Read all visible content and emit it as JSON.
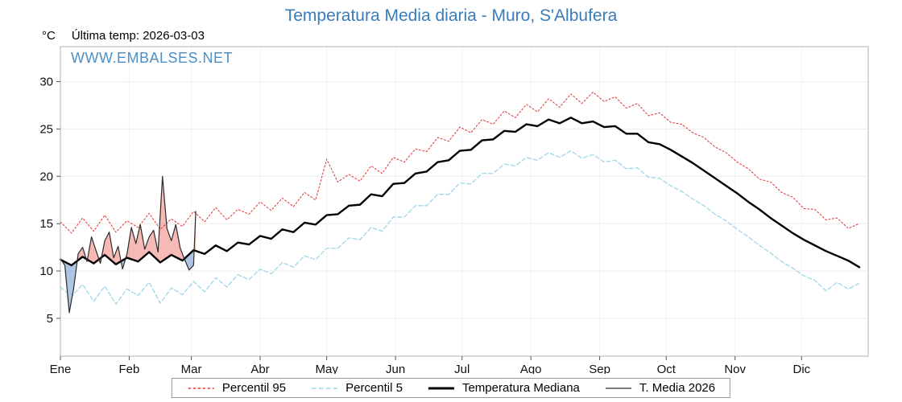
{
  "title": "Temperatura Media diaria - Muro, S'Albufera",
  "header": {
    "unit": "°C",
    "last_temp": "Última temp: 2026-03-03"
  },
  "watermark": "WWW.EMBALSES.NET",
  "colors": {
    "title": "#3a7cb8",
    "watermark": "#4a90c8",
    "p95": "#e03131",
    "p5": "#9fd6e8",
    "median": "#000000",
    "t2026": "#2b2b2b",
    "fill_above": "rgba(235,100,90,0.45)",
    "fill_below": "rgba(110,150,205,0.55)",
    "grid": "#ececec",
    "axis": "#b0b0b0"
  },
  "legend": {
    "items": [
      {
        "label": "Percentil 95"
      },
      {
        "label": "Percentil 5"
      },
      {
        "label": "Temperatura Mediana"
      },
      {
        "label": "T. Media 2026"
      }
    ]
  },
  "chart_data": {
    "type": "line",
    "title": "Temperatura Media diaria - Muro, S'Albufera",
    "ylabel": "°C",
    "ylim": [
      1,
      33.7
    ],
    "yticks": [
      5,
      10,
      15,
      20,
      25,
      30
    ],
    "x_unit": "day_of_year",
    "month_labels": [
      "Ene",
      "Feb",
      "Mar",
      "Abr",
      "May",
      "Jun",
      "Jul",
      "Ago",
      "Sep",
      "Oct",
      "Nov",
      "Dic"
    ],
    "month_start_days": [
      1,
      32,
      60,
      91,
      121,
      152,
      182,
      213,
      244,
      274,
      305,
      335
    ],
    "legend_position": "bottom",
    "days": [
      1,
      6,
      11,
      16,
      21,
      26,
      31,
      36,
      41,
      46,
      51,
      56,
      61,
      66,
      71,
      76,
      81,
      86,
      91,
      96,
      101,
      106,
      111,
      116,
      121,
      126,
      131,
      136,
      141,
      146,
      151,
      156,
      161,
      166,
      171,
      176,
      181,
      186,
      191,
      196,
      201,
      206,
      211,
      216,
      221,
      226,
      231,
      236,
      241,
      246,
      251,
      256,
      261,
      266,
      271,
      276,
      281,
      286,
      291,
      296,
      301,
      306,
      311,
      316,
      321,
      326,
      331,
      336,
      341,
      346,
      351,
      356,
      361
    ],
    "series": [
      {
        "name": "Percentil 95",
        "values": [
          15.2,
          14.0,
          15.6,
          14.2,
          15.9,
          14.1,
          15.3,
          14.6,
          16.1,
          14.4,
          15.5,
          14.7,
          16.3,
          15.2,
          16.7,
          15.4,
          16.5,
          16.0,
          17.3,
          16.4,
          17.7,
          16.8,
          18.3,
          17.5,
          21.8,
          19.4,
          20.2,
          19.5,
          21.1,
          20.3,
          22.0,
          21.5,
          22.9,
          22.6,
          24.1,
          23.7,
          25.2,
          24.6,
          26.0,
          25.5,
          26.9,
          26.2,
          27.6,
          26.8,
          28.2,
          27.3,
          28.7,
          27.7,
          28.9,
          27.9,
          28.4,
          27.2,
          27.7,
          26.4,
          26.7,
          25.7,
          25.5,
          24.6,
          24.1,
          23.1,
          22.5,
          21.5,
          20.8,
          19.7,
          19.4,
          18.3,
          17.8,
          16.6,
          16.5,
          15.4,
          15.6,
          14.5,
          15.0
        ]
      },
      {
        "name": "Percentil 5",
        "values": [
          8.3,
          7.3,
          8.6,
          6.8,
          8.4,
          6.5,
          8.1,
          7.4,
          8.8,
          6.6,
          8.2,
          7.5,
          8.9,
          7.8,
          9.3,
          8.3,
          9.6,
          9.1,
          10.2,
          9.7,
          10.9,
          10.4,
          11.6,
          11.2,
          12.4,
          12.4,
          13.5,
          13.3,
          14.6,
          14.2,
          15.7,
          15.7,
          16.9,
          16.9,
          18.1,
          18.1,
          19.3,
          19.2,
          20.3,
          20.3,
          21.3,
          21.1,
          22.0,
          21.7,
          22.5,
          22.0,
          22.7,
          21.9,
          22.3,
          21.5,
          21.7,
          20.8,
          20.9,
          19.9,
          19.8,
          19.0,
          18.4,
          17.6,
          16.9,
          16.0,
          15.3,
          14.4,
          13.6,
          12.7,
          11.9,
          11.0,
          10.3,
          9.5,
          9.0,
          7.9,
          8.8,
          8.1,
          8.7
        ]
      },
      {
        "name": "Temperatura Mediana",
        "values": [
          11.2,
          10.6,
          11.5,
          10.8,
          11.7,
          10.7,
          11.4,
          11.0,
          12.0,
          10.9,
          11.7,
          11.1,
          12.2,
          11.8,
          12.7,
          12.1,
          13.0,
          12.8,
          13.7,
          13.4,
          14.4,
          14.1,
          15.1,
          14.9,
          15.9,
          16.0,
          16.9,
          17.0,
          18.1,
          17.9,
          19.2,
          19.3,
          20.3,
          20.5,
          21.5,
          21.7,
          22.7,
          22.8,
          23.8,
          23.9,
          24.8,
          24.7,
          25.5,
          25.3,
          26.0,
          25.6,
          26.2,
          25.6,
          25.8,
          25.2,
          25.3,
          24.5,
          24.5,
          23.6,
          23.4,
          22.8,
          22.1,
          21.4,
          20.6,
          19.8,
          19.0,
          18.2,
          17.3,
          16.5,
          15.6,
          14.8,
          14.0,
          13.3,
          12.7,
          12.1,
          11.6,
          11.1,
          10.4
        ]
      },
      {
        "name": "T. Media 2026",
        "days": [
          1,
          3,
          5,
          7,
          9,
          11,
          13,
          15,
          17,
          19,
          21,
          23,
          25,
          27,
          29,
          31,
          33,
          35,
          37,
          39,
          41,
          43,
          45,
          47,
          49,
          51,
          53,
          55,
          57,
          59,
          61,
          62
        ],
        "values": [
          11.3,
          10.6,
          5.6,
          8.2,
          11.8,
          12.5,
          11.0,
          13.6,
          12.2,
          10.8,
          13.2,
          14.1,
          11.4,
          12.6,
          10.2,
          11.8,
          14.6,
          12.9,
          14.9,
          12.3,
          13.6,
          14.3,
          12.0,
          20.0,
          14.5,
          13.2,
          14.9,
          12.4,
          11.2,
          10.1,
          10.6,
          16.3
        ]
      }
    ]
  }
}
